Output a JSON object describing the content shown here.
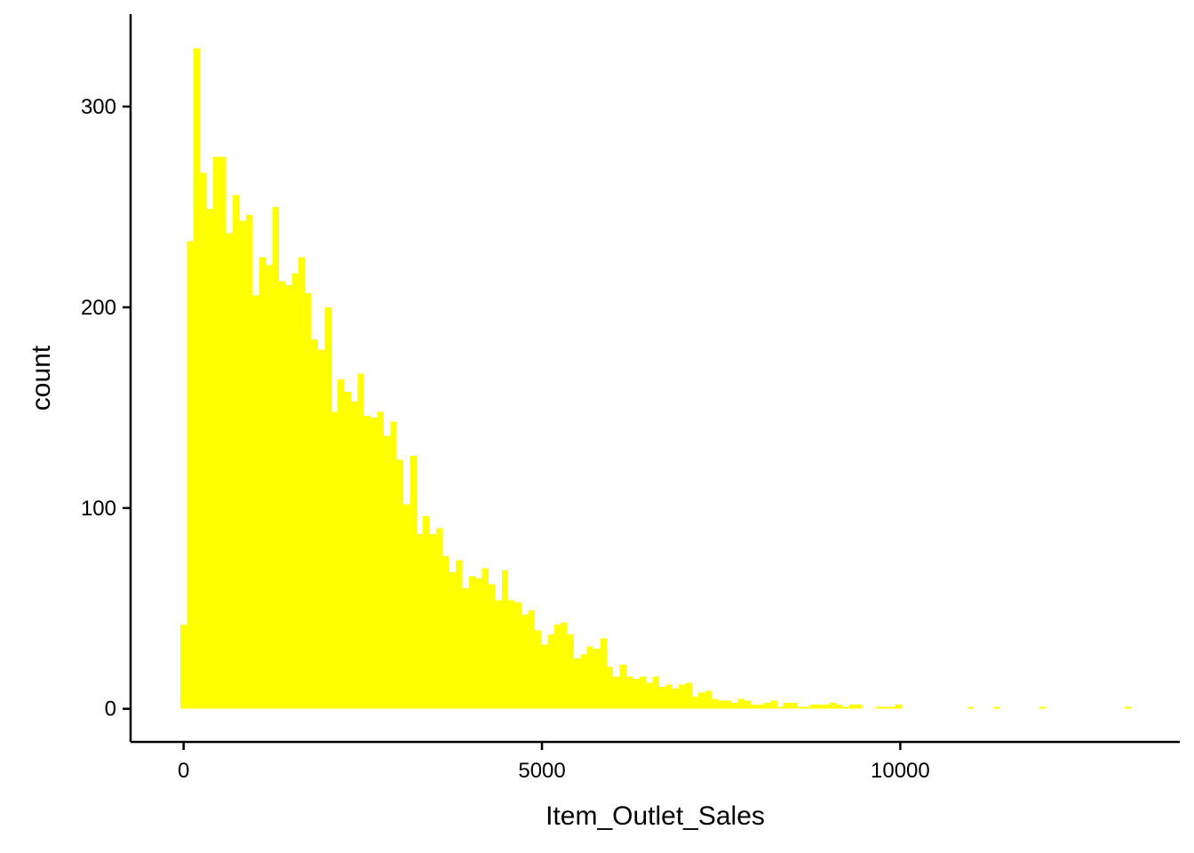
{
  "chart_data": {
    "type": "bar",
    "xlabel": "Item_Outlet_Sales",
    "ylabel": "count",
    "bar_color": "#ffff00",
    "axis_color": "#000000",
    "xlim": [
      -740,
      13900
    ],
    "ylim": [
      -16.5,
      346
    ],
    "xticks": [
      0,
      5000,
      10000
    ],
    "yticks": [
      0,
      100,
      200,
      300
    ],
    "xtick_labels": [
      "0",
      "5000",
      "10000"
    ],
    "ytick_labels": [
      "0",
      "100",
      "200",
      "300"
    ],
    "bin_width": 91.5,
    "bins_start": -45,
    "counts": [
      42,
      233,
      329,
      267,
      249,
      275,
      275,
      237,
      256,
      243,
      246,
      206,
      225,
      221,
      250,
      213,
      211,
      217,
      225,
      207,
      184,
      179,
      200,
      148,
      164,
      158,
      153,
      167,
      146,
      145,
      148,
      136,
      143,
      124,
      102,
      126,
      87,
      96,
      87,
      90,
      76,
      68,
      74,
      60,
      66,
      65,
      70,
      62,
      54,
      69,
      54,
      53,
      47,
      49,
      39,
      32,
      37,
      42,
      43,
      37,
      25,
      27,
      31,
      30,
      35,
      21,
      16,
      22,
      16,
      15,
      16,
      13,
      16,
      11,
      12,
      10,
      12,
      13,
      6,
      8,
      9,
      5,
      4,
      4,
      3,
      5,
      4,
      2,
      2,
      3,
      4,
      1,
      3,
      3,
      1,
      1,
      2,
      2,
      2,
      3,
      2,
      1,
      2,
      2,
      0,
      0,
      1,
      1,
      1,
      2,
      0,
      0,
      0,
      0,
      0,
      0,
      0,
      0,
      0,
      0,
      1,
      0,
      0,
      0,
      1,
      0,
      0,
      0,
      0,
      0,
      0,
      1,
      0,
      0,
      0,
      0,
      0,
      0,
      0,
      0,
      0,
      0,
      0,
      0,
      1
    ]
  }
}
